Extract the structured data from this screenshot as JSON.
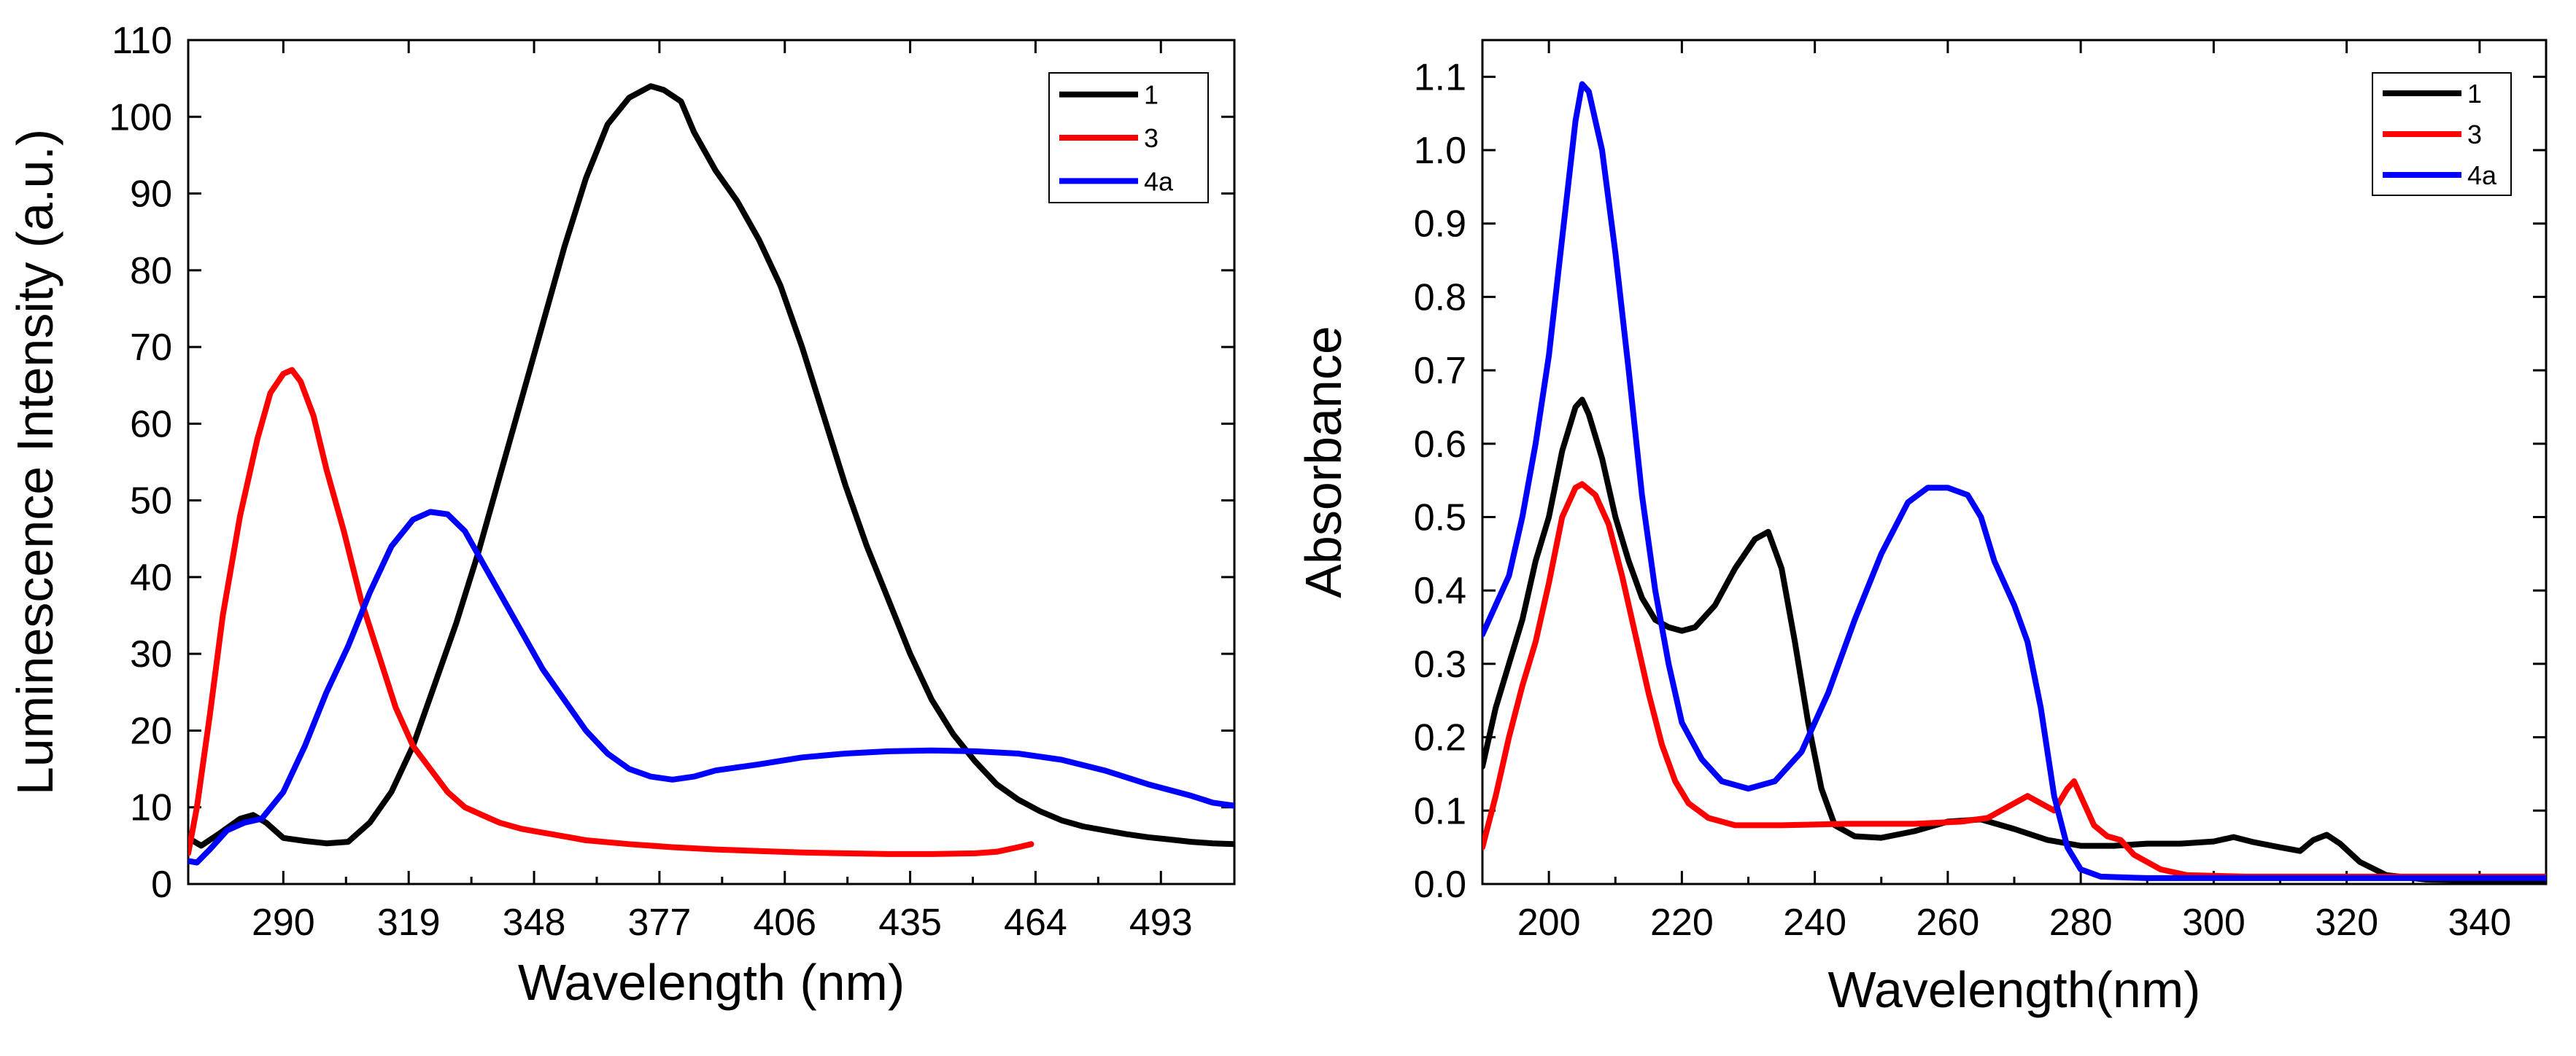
{
  "chart_data": [
    {
      "type": "line",
      "xlabel": "Wavelength (nm)",
      "ylabel": "Luminescence Intensity (a.u.)",
      "xlim": [
        268,
        510
      ],
      "ylim": [
        0,
        110
      ],
      "xticks": [
        "290",
        "319",
        "348",
        "377",
        "406",
        "435",
        "464",
        "493"
      ],
      "yticks": [
        "0",
        "10",
        "20",
        "30",
        "40",
        "50",
        "60",
        "70",
        "80",
        "90",
        "100",
        "110"
      ],
      "legend_position": "top-right",
      "series": [
        {
          "name": "1",
          "color": "#000000",
          "points": [
            [
              268,
              6
            ],
            [
              271,
              5
            ],
            [
              275,
              6.5
            ],
            [
              280,
              8.5
            ],
            [
              283,
              9
            ],
            [
              286,
              8
            ],
            [
              290,
              6
            ],
            [
              295,
              5.6
            ],
            [
              300,
              5.3
            ],
            [
              305,
              5.5
            ],
            [
              310,
              8
            ],
            [
              315,
              12
            ],
            [
              320,
              18
            ],
            [
              325,
              26
            ],
            [
              330,
              34
            ],
            [
              335,
              43
            ],
            [
              340,
              53
            ],
            [
              345,
              63
            ],
            [
              350,
              73
            ],
            [
              355,
              83
            ],
            [
              360,
              92
            ],
            [
              365,
              99
            ],
            [
              370,
              102.5
            ],
            [
              375,
              104
            ],
            [
              378,
              103.5
            ],
            [
              382,
              102
            ],
            [
              385,
              98
            ],
            [
              390,
              93
            ],
            [
              395,
              89
            ],
            [
              400,
              84
            ],
            [
              405,
              78
            ],
            [
              410,
              70
            ],
            [
              415,
              61
            ],
            [
              420,
              52
            ],
            [
              425,
              44
            ],
            [
              430,
              37
            ],
            [
              435,
              30
            ],
            [
              440,
              24
            ],
            [
              445,
              19.5
            ],
            [
              450,
              16
            ],
            [
              455,
              13
            ],
            [
              460,
              11
            ],
            [
              465,
              9.5
            ],
            [
              470,
              8.3
            ],
            [
              475,
              7.5
            ],
            [
              480,
              7
            ],
            [
              485,
              6.5
            ],
            [
              490,
              6.1
            ],
            [
              495,
              5.8
            ],
            [
              500,
              5.5
            ],
            [
              505,
              5.3
            ],
            [
              510,
              5.2
            ]
          ]
        },
        {
          "name": "3",
          "color": "#ff0000",
          "points": [
            [
              268,
              4
            ],
            [
              270,
              10
            ],
            [
              273,
              22
            ],
            [
              276,
              35
            ],
            [
              280,
              48
            ],
            [
              284,
              58
            ],
            [
              287,
              64
            ],
            [
              290,
              66.5
            ],
            [
              292,
              67
            ],
            [
              294,
              65.5
            ],
            [
              297,
              61
            ],
            [
              300,
              54
            ],
            [
              304,
              46
            ],
            [
              308,
              37
            ],
            [
              312,
              30
            ],
            [
              316,
              23
            ],
            [
              320,
              18
            ],
            [
              324,
              15
            ],
            [
              328,
              12
            ],
            [
              332,
              10
            ],
            [
              336,
              9
            ],
            [
              340,
              8
            ],
            [
              345,
              7.2
            ],
            [
              350,
              6.7
            ],
            [
              355,
              6.2
            ],
            [
              360,
              5.7
            ],
            [
              370,
              5.2
            ],
            [
              380,
              4.8
            ],
            [
              390,
              4.5
            ],
            [
              400,
              4.3
            ],
            [
              410,
              4.1
            ],
            [
              420,
              4
            ],
            [
              430,
              3.9
            ],
            [
              440,
              3.9
            ],
            [
              450,
              4
            ],
            [
              455,
              4.2
            ],
            [
              460,
              4.8
            ],
            [
              463,
              5.2
            ]
          ]
        },
        {
          "name": "4a",
          "color": "#0000ff",
          "points": [
            [
              268,
              3
            ],
            [
              270,
              2.8
            ],
            [
              273,
              4.5
            ],
            [
              277,
              7
            ],
            [
              281,
              8
            ],
            [
              285,
              8.5
            ],
            [
              290,
              12
            ],
            [
              295,
              18
            ],
            [
              300,
              25
            ],
            [
              305,
              31
            ],
            [
              310,
              38
            ],
            [
              315,
              44
            ],
            [
              320,
              47.5
            ],
            [
              324,
              48.5
            ],
            [
              328,
              48.2
            ],
            [
              332,
              46
            ],
            [
              336,
              42
            ],
            [
              340,
              38
            ],
            [
              345,
              33
            ],
            [
              350,
              28
            ],
            [
              355,
              24
            ],
            [
              360,
              20
            ],
            [
              365,
              17
            ],
            [
              370,
              15
            ],
            [
              375,
              14
            ],
            [
              380,
              13.6
            ],
            [
              385,
              14
            ],
            [
              390,
              14.8
            ],
            [
              400,
              15.6
            ],
            [
              410,
              16.5
            ],
            [
              420,
              17
            ],
            [
              430,
              17.3
            ],
            [
              440,
              17.4
            ],
            [
              450,
              17.3
            ],
            [
              460,
              17
            ],
            [
              470,
              16.2
            ],
            [
              480,
              14.8
            ],
            [
              490,
              13
            ],
            [
              500,
              11.5
            ],
            [
              505,
              10.6
            ],
            [
              510,
              10.2
            ]
          ]
        }
      ]
    },
    {
      "type": "line",
      "xlabel": "Wavelength(nm)",
      "ylabel": "Absorbance",
      "xlim": [
        190,
        350
      ],
      "ylim": [
        0,
        1.15
      ],
      "xticks": [
        "200",
        "220",
        "240",
        "260",
        "280",
        "300",
        "320",
        "340"
      ],
      "yticks": [
        "0.0",
        "0.1",
        "0.2",
        "0.3",
        "0.4",
        "0.5",
        "0.6",
        "0.7",
        "0.8",
        "0.9",
        "1.0",
        "1.1"
      ],
      "legend_position": "top-right",
      "series": [
        {
          "name": "1",
          "color": "#000000",
          "points": [
            [
              190,
              0.16
            ],
            [
              192,
              0.24
            ],
            [
              194,
              0.3
            ],
            [
              196,
              0.36
            ],
            [
              198,
              0.44
            ],
            [
              200,
              0.5
            ],
            [
              202,
              0.59
            ],
            [
              204,
              0.65
            ],
            [
              205,
              0.66
            ],
            [
              206,
              0.64
            ],
            [
              208,
              0.58
            ],
            [
              210,
              0.5
            ],
            [
              212,
              0.44
            ],
            [
              214,
              0.39
            ],
            [
              216,
              0.36
            ],
            [
              218,
              0.35
            ],
            [
              220,
              0.345
            ],
            [
              222,
              0.35
            ],
            [
              225,
              0.38
            ],
            [
              228,
              0.43
            ],
            [
              231,
              0.47
            ],
            [
              233,
              0.48
            ],
            [
              235,
              0.43
            ],
            [
              237,
              0.33
            ],
            [
              239,
              0.22
            ],
            [
              241,
              0.13
            ],
            [
              243,
              0.08
            ],
            [
              246,
              0.065
            ],
            [
              250,
              0.063
            ],
            [
              255,
              0.072
            ],
            [
              260,
              0.085
            ],
            [
              265,
              0.088
            ],
            [
              270,
              0.075
            ],
            [
              275,
              0.06
            ],
            [
              280,
              0.052
            ],
            [
              285,
              0.052
            ],
            [
              290,
              0.055
            ],
            [
              295,
              0.055
            ],
            [
              300,
              0.058
            ],
            [
              303,
              0.064
            ],
            [
              306,
              0.057
            ],
            [
              310,
              0.05
            ],
            [
              313,
              0.045
            ],
            [
              315,
              0.06
            ],
            [
              317,
              0.067
            ],
            [
              319,
              0.055
            ],
            [
              322,
              0.03
            ],
            [
              326,
              0.012
            ],
            [
              332,
              0.006
            ],
            [
              340,
              0.005
            ],
            [
              350,
              0.005
            ]
          ]
        },
        {
          "name": "3",
          "color": "#ff0000",
          "points": [
            [
              190,
              0.05
            ],
            [
              192,
              0.12
            ],
            [
              194,
              0.2
            ],
            [
              196,
              0.27
            ],
            [
              198,
              0.33
            ],
            [
              200,
              0.41
            ],
            [
              202,
              0.5
            ],
            [
              204,
              0.54
            ],
            [
              205,
              0.545
            ],
            [
              207,
              0.53
            ],
            [
              209,
              0.49
            ],
            [
              211,
              0.42
            ],
            [
              213,
              0.34
            ],
            [
              215,
              0.26
            ],
            [
              217,
              0.19
            ],
            [
              219,
              0.14
            ],
            [
              221,
              0.11
            ],
            [
              224,
              0.09
            ],
            [
              228,
              0.08
            ],
            [
              235,
              0.08
            ],
            [
              245,
              0.082
            ],
            [
              255,
              0.082
            ],
            [
              262,
              0.085
            ],
            [
              266,
              0.09
            ],
            [
              270,
              0.11
            ],
            [
              272,
              0.12
            ],
            [
              274,
              0.11
            ],
            [
              276,
              0.1
            ],
            [
              278,
              0.13
            ],
            [
              279,
              0.14
            ],
            [
              280,
              0.12
            ],
            [
              282,
              0.08
            ],
            [
              284,
              0.065
            ],
            [
              286,
              0.06
            ],
            [
              288,
              0.04
            ],
            [
              292,
              0.02
            ],
            [
              296,
              0.012
            ],
            [
              305,
              0.01
            ],
            [
              320,
              0.01
            ],
            [
              335,
              0.01
            ],
            [
              350,
              0.01
            ]
          ]
        },
        {
          "name": "4a",
          "color": "#0000ff",
          "points": [
            [
              190,
              0.34
            ],
            [
              192,
              0.38
            ],
            [
              194,
              0.42
            ],
            [
              196,
              0.5
            ],
            [
              198,
              0.6
            ],
            [
              200,
              0.72
            ],
            [
              202,
              0.88
            ],
            [
              204,
              1.04
            ],
            [
              205,
              1.09
            ],
            [
              206,
              1.08
            ],
            [
              208,
              1.0
            ],
            [
              210,
              0.86
            ],
            [
              212,
              0.7
            ],
            [
              214,
              0.53
            ],
            [
              216,
              0.4
            ],
            [
              218,
              0.3
            ],
            [
              220,
              0.22
            ],
            [
              223,
              0.17
            ],
            [
              226,
              0.14
            ],
            [
              230,
              0.13
            ],
            [
              234,
              0.14
            ],
            [
              238,
              0.18
            ],
            [
              242,
              0.26
            ],
            [
              246,
              0.36
            ],
            [
              250,
              0.45
            ],
            [
              254,
              0.52
            ],
            [
              257,
              0.54
            ],
            [
              260,
              0.54
            ],
            [
              263,
              0.53
            ],
            [
              265,
              0.5
            ],
            [
              267,
              0.44
            ],
            [
              270,
              0.38
            ],
            [
              272,
              0.33
            ],
            [
              274,
              0.24
            ],
            [
              276,
              0.12
            ],
            [
              278,
              0.05
            ],
            [
              280,
              0.02
            ],
            [
              283,
              0.01
            ],
            [
              290,
              0.008
            ],
            [
              320,
              0.008
            ],
            [
              350,
              0.008
            ]
          ]
        }
      ]
    }
  ]
}
